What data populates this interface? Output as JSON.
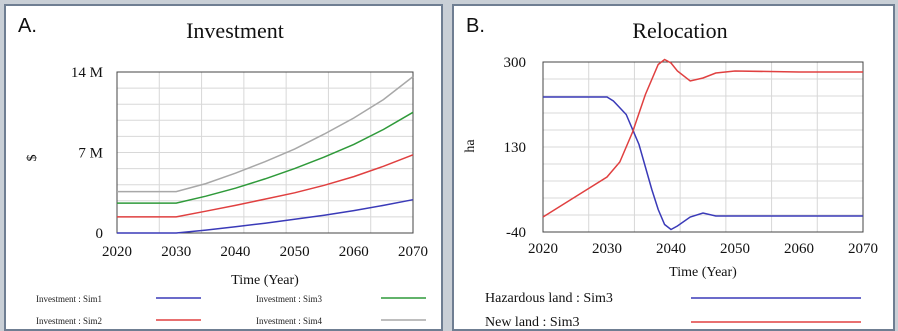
{
  "chart_data": [
    {
      "panel": "A.",
      "type": "line",
      "title": "Investment",
      "xlabel": "Time (Year)",
      "ylabel": "$",
      "xlim": [
        2020,
        2070
      ],
      "ylim": [
        0,
        14
      ],
      "x_ticks": [
        "2020",
        "2030",
        "2040",
        "2050",
        "2060",
        "2070"
      ],
      "y_ticks": [
        {
          "value": 0,
          "label": "0"
        },
        {
          "value": 7,
          "label": "7 M"
        },
        {
          "value": 14,
          "label": "14 M"
        }
      ],
      "grid": true,
      "series": [
        {
          "name": "Investment : Sim1",
          "color": "#3a3ab8",
          "x": [
            2020,
            2030,
            2035,
            2040,
            2045,
            2050,
            2055,
            2060,
            2065,
            2070
          ],
          "y": [
            0.0,
            0.0,
            0.25,
            0.55,
            0.85,
            1.2,
            1.55,
            1.95,
            2.4,
            2.9
          ]
        },
        {
          "name": "Investment : Sim2",
          "color": "#e04040",
          "x": [
            2020,
            2030,
            2035,
            2040,
            2045,
            2050,
            2055,
            2060,
            2065,
            2070
          ],
          "y": [
            1.4,
            1.4,
            1.9,
            2.4,
            2.95,
            3.5,
            4.15,
            4.9,
            5.8,
            6.8
          ]
        },
        {
          "name": "Investment : Sim3",
          "color": "#2f9a3a",
          "x": [
            2020,
            2030,
            2035,
            2040,
            2045,
            2050,
            2055,
            2060,
            2065,
            2070
          ],
          "y": [
            2.6,
            2.6,
            3.2,
            3.9,
            4.7,
            5.6,
            6.6,
            7.7,
            9.0,
            10.5
          ]
        },
        {
          "name": "Investment : Sim4",
          "color": "#a8a8a8",
          "x": [
            2020,
            2030,
            2035,
            2040,
            2045,
            2050,
            2055,
            2060,
            2065,
            2070
          ],
          "y": [
            3.6,
            3.6,
            4.3,
            5.2,
            6.2,
            7.3,
            8.6,
            10.0,
            11.6,
            13.6
          ]
        }
      ],
      "legend_position": "bottom"
    },
    {
      "panel": "B.",
      "type": "line",
      "title": "Relocation",
      "xlabel": "Time (Year)",
      "ylabel": "ha",
      "xlim": [
        2020,
        2070
      ],
      "ylim": [
        -40,
        300
      ],
      "x_ticks": [
        "2020",
        "2030",
        "2040",
        "2050",
        "2060",
        "2070"
      ],
      "y_ticks": [
        {
          "value": -40,
          "label": "-40"
        },
        {
          "value": 130,
          "label": "130"
        },
        {
          "value": 300,
          "label": "300"
        }
      ],
      "grid": true,
      "series": [
        {
          "name": "Hazardous land : Sim3",
          "color": "#3a3ab8",
          "x": [
            2020,
            2030,
            2031,
            2033,
            2035,
            2037,
            2038,
            2039,
            2040,
            2041,
            2043,
            2045,
            2047,
            2050,
            2060,
            2070
          ],
          "y": [
            230,
            230,
            222,
            195,
            135,
            45,
            5,
            -25,
            -35,
            -28,
            -10,
            -2,
            -8,
            -8,
            -8,
            -8
          ]
        },
        {
          "name": "New land : Sim3",
          "color": "#e04040",
          "x": [
            2020,
            2025,
            2030,
            2032,
            2034,
            2036,
            2038,
            2039,
            2040,
            2041,
            2043,
            2045,
            2047,
            2050,
            2060,
            2070
          ],
          "y": [
            -10,
            30,
            70,
            100,
            160,
            235,
            295,
            305,
            298,
            282,
            262,
            268,
            278,
            282,
            280,
            280
          ]
        }
      ],
      "legend_position": "bottom"
    }
  ]
}
